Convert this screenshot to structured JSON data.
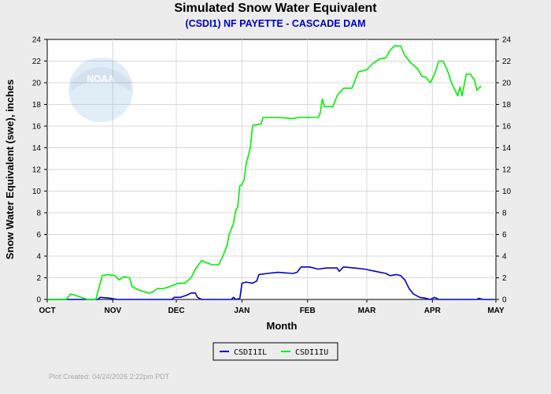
{
  "chart_data": {
    "type": "line",
    "title": "Simulated Snow Water Equivalent",
    "subtitle": "(CSDI1) NF PAYETTE - CASCADE DAM",
    "xlabel": "Month",
    "ylabel": "Snow Water Equivalent (swe),  inches",
    "ylim": [
      0,
      24
    ],
    "yticks": [
      0,
      2,
      4,
      6,
      8,
      10,
      12,
      14,
      16,
      18,
      20,
      22,
      24
    ],
    "x_axis": {
      "start": "2025-10-01",
      "end": "2026-05-01"
    },
    "month_ticks": [
      "OCT",
      "NOV",
      "DEC",
      "JAN",
      "FEB",
      "MAR",
      "APR",
      "MAY"
    ],
    "month_tick_dates": [
      "2025-10-01",
      "2025-11-01",
      "2025-12-01",
      "2026-01-01",
      "2026-02-01",
      "2026-03-01",
      "2026-04-01",
      "2026-05-01"
    ],
    "grid": true,
    "legend_position": "bottom-center",
    "series": [
      {
        "name": "CSDI1IL",
        "color": "#0000cc",
        "points": [
          [
            "2025-10-01",
            0
          ],
          [
            "2025-10-25",
            0
          ],
          [
            "2025-10-26",
            0.2
          ],
          [
            "2025-10-31",
            0.1
          ],
          [
            "2025-11-03",
            0
          ],
          [
            "2025-11-29",
            0
          ],
          [
            "2025-11-30",
            0.2
          ],
          [
            "2025-12-03",
            0.2
          ],
          [
            "2025-12-06",
            0.4
          ],
          [
            "2025-12-08",
            0.6
          ],
          [
            "2025-12-10",
            0.6
          ],
          [
            "2025-12-11",
            0.2
          ],
          [
            "2025-12-13",
            0
          ],
          [
            "2025-12-27",
            0
          ],
          [
            "2025-12-28",
            0.2
          ],
          [
            "2025-12-29",
            0
          ],
          [
            "2025-12-31",
            0.1
          ],
          [
            "2026-01-01",
            1.5
          ],
          [
            "2026-01-03",
            1.6
          ],
          [
            "2026-01-06",
            1.5
          ],
          [
            "2026-01-08",
            1.7
          ],
          [
            "2026-01-09",
            2.3
          ],
          [
            "2026-01-13",
            2.4
          ],
          [
            "2026-01-18",
            2.5
          ],
          [
            "2026-01-25",
            2.4
          ],
          [
            "2026-01-27",
            2.5
          ],
          [
            "2026-01-29",
            3.0
          ],
          [
            "2026-02-02",
            3.0
          ],
          [
            "2026-02-06",
            2.8
          ],
          [
            "2026-02-10",
            2.9
          ],
          [
            "2026-02-15",
            2.9
          ],
          [
            "2026-02-16",
            2.6
          ],
          [
            "2026-02-18",
            3.0
          ],
          [
            "2026-02-23",
            2.9
          ],
          [
            "2026-02-28",
            2.8
          ],
          [
            "2026-03-05",
            2.6
          ],
          [
            "2026-03-10",
            2.4
          ],
          [
            "2026-03-12",
            2.2
          ],
          [
            "2026-03-15",
            2.3
          ],
          [
            "2026-03-17",
            2.2
          ],
          [
            "2026-03-19",
            1.8
          ],
          [
            "2026-03-21",
            1.0
          ],
          [
            "2026-03-23",
            0.5
          ],
          [
            "2026-03-26",
            0.2
          ],
          [
            "2026-03-29",
            0.1
          ],
          [
            "2026-03-31",
            0
          ],
          [
            "2026-04-02",
            0.2
          ],
          [
            "2026-04-04",
            0
          ],
          [
            "2026-04-22",
            0
          ],
          [
            "2026-04-23",
            0.1
          ],
          [
            "2026-04-25",
            0
          ],
          [
            "2026-04-28",
            0
          ],
          [
            "2026-04-30",
            0
          ]
        ]
      },
      {
        "name": "CSDI1IU",
        "color": "#00ee00",
        "points": [
          [
            "2025-10-01",
            0
          ],
          [
            "2025-10-10",
            0
          ],
          [
            "2025-10-12",
            0.5
          ],
          [
            "2025-10-14",
            0.4
          ],
          [
            "2025-10-17",
            0.2
          ],
          [
            "2025-10-20",
            0
          ],
          [
            "2025-10-24",
            0
          ],
          [
            "2025-10-26",
            1.5
          ],
          [
            "2025-10-27",
            2.2
          ],
          [
            "2025-10-30",
            2.3
          ],
          [
            "2025-11-02",
            2.2
          ],
          [
            "2025-11-04",
            1.8
          ],
          [
            "2025-11-06",
            2.1
          ],
          [
            "2025-11-09",
            2.0
          ],
          [
            "2025-11-10",
            1.2
          ],
          [
            "2025-11-14",
            0.8
          ],
          [
            "2025-11-18",
            0.6
          ],
          [
            "2025-11-20",
            0.7
          ],
          [
            "2025-11-22",
            1.0
          ],
          [
            "2025-11-25",
            1.0
          ],
          [
            "2025-11-28",
            1.2
          ],
          [
            "2025-12-02",
            1.5
          ],
          [
            "2025-12-05",
            1.5
          ],
          [
            "2025-12-08",
            2.0
          ],
          [
            "2025-12-10",
            2.8
          ],
          [
            "2025-12-13",
            3.6
          ],
          [
            "2025-12-15",
            3.4
          ],
          [
            "2025-12-18",
            3.2
          ],
          [
            "2025-12-21",
            3.2
          ],
          [
            "2025-12-23",
            4.0
          ],
          [
            "2025-12-25",
            5.0
          ],
          [
            "2025-12-26",
            6.0
          ],
          [
            "2025-12-27",
            6.5
          ],
          [
            "2025-12-28",
            7.0
          ],
          [
            "2025-12-29",
            8.2
          ],
          [
            "2025-12-30",
            8.5
          ],
          [
            "2025-12-31",
            10.5
          ],
          [
            "2026-01-01",
            10.6
          ],
          [
            "2026-01-02",
            11.0
          ],
          [
            "2026-01-03",
            12.5
          ],
          [
            "2026-01-05",
            14.0
          ],
          [
            "2026-01-06",
            16.0
          ],
          [
            "2026-01-07",
            16.1
          ],
          [
            "2026-01-10",
            16.2
          ],
          [
            "2026-01-11",
            16.8
          ],
          [
            "2026-01-18",
            16.8
          ],
          [
            "2026-01-25",
            16.7
          ],
          [
            "2026-01-28",
            16.8
          ],
          [
            "2026-02-06",
            16.8
          ],
          [
            "2026-02-07",
            17.2
          ],
          [
            "2026-02-08",
            18.5
          ],
          [
            "2026-02-09",
            17.8
          ],
          [
            "2026-02-13",
            17.8
          ],
          [
            "2026-02-15",
            18.8
          ],
          [
            "2026-02-18",
            19.5
          ],
          [
            "2026-02-22",
            19.5
          ],
          [
            "2026-02-25",
            21.0
          ],
          [
            "2026-03-01",
            21.2
          ],
          [
            "2026-03-04",
            21.8
          ],
          [
            "2026-03-07",
            22.2
          ],
          [
            "2026-03-10",
            22.3
          ],
          [
            "2026-03-12",
            23.0
          ],
          [
            "2026-03-14",
            23.4
          ],
          [
            "2026-03-17",
            23.4
          ],
          [
            "2026-03-19",
            22.5
          ],
          [
            "2026-03-22",
            21.8
          ],
          [
            "2026-03-25",
            21.3
          ],
          [
            "2026-03-27",
            20.6
          ],
          [
            "2026-03-29",
            20.5
          ],
          [
            "2026-03-31",
            20.0
          ],
          [
            "2026-04-02",
            20.8
          ],
          [
            "2026-04-04",
            22.0
          ],
          [
            "2026-04-06",
            22.0
          ],
          [
            "2026-04-08",
            21.2
          ],
          [
            "2026-04-10",
            20.0
          ],
          [
            "2026-04-12",
            19.2
          ],
          [
            "2026-04-13",
            18.8
          ],
          [
            "2026-04-14",
            19.6
          ],
          [
            "2026-04-15",
            18.8
          ],
          [
            "2026-04-17",
            20.8
          ],
          [
            "2026-04-19",
            20.8
          ],
          [
            "2026-04-21",
            20.2
          ],
          [
            "2026-04-22",
            19.3
          ],
          [
            "2026-04-24",
            19.7
          ]
        ]
      }
    ]
  },
  "footer_text": "Plot Created: 04/24/2026 2:22pm PDT",
  "logo_text": "NOAA"
}
